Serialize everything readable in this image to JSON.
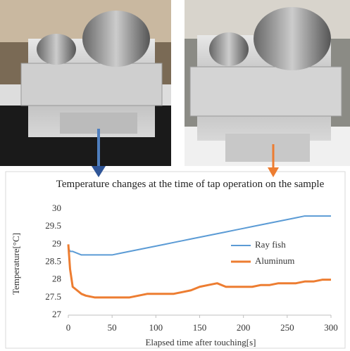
{
  "chart_data": {
    "type": "line",
    "title": "Temperature changes at the time of tap operation on the sample",
    "xlabel": "Elapsed time after touching[s]",
    "ylabel": "Temperature[°C]",
    "x": [
      0,
      2,
      5,
      10,
      15,
      20,
      30,
      40,
      50,
      60,
      70,
      80,
      90,
      100,
      110,
      120,
      130,
      140,
      150,
      160,
      170,
      180,
      190,
      200,
      210,
      220,
      230,
      240,
      250,
      260,
      270,
      280,
      290,
      300
    ],
    "series": [
      {
        "name": "Ray fish",
        "color": "#5b9bd5",
        "values": [
          28.9,
          28.8,
          28.8,
          28.75,
          28.7,
          28.7,
          28.7,
          28.7,
          28.7,
          28.75,
          28.8,
          28.85,
          28.9,
          28.95,
          29.0,
          29.05,
          29.1,
          29.15,
          29.2,
          29.25,
          29.3,
          29.35,
          29.4,
          29.45,
          29.5,
          29.55,
          29.6,
          29.65,
          29.7,
          29.75,
          29.8,
          29.8,
          29.8,
          29.8
        ]
      },
      {
        "name": "Aluminum",
        "color": "#ed7d31",
        "values": [
          29.0,
          28.3,
          27.8,
          27.7,
          27.6,
          27.55,
          27.5,
          27.5,
          27.5,
          27.5,
          27.5,
          27.55,
          27.6,
          27.6,
          27.6,
          27.6,
          27.65,
          27.7,
          27.8,
          27.85,
          27.9,
          27.8,
          27.8,
          27.8,
          27.8,
          27.85,
          27.85,
          27.9,
          27.9,
          27.9,
          27.95,
          27.95,
          28.0,
          28.0
        ]
      }
    ],
    "xlim": [
      0,
      300
    ],
    "xticks": [
      0,
      50,
      100,
      150,
      200,
      250,
      300
    ],
    "ylim": [
      27,
      30
    ],
    "yticks": [
      27,
      27.5,
      28,
      28.5,
      29,
      29.5,
      30
    ],
    "grid": false
  }
}
